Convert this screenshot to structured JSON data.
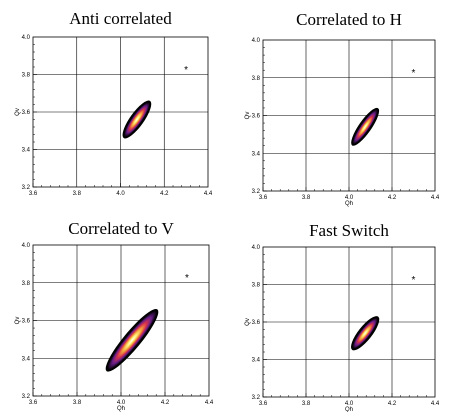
{
  "chart_data": [
    {
      "type": "heatmap",
      "title": "Anti correlated",
      "xlabel": "",
      "ylabel": "Qv",
      "xlim": [
        3.6,
        4.4
      ],
      "ylim": [
        3.2,
        4.0
      ],
      "xticks": [
        "3.6",
        "3.8",
        "4.0",
        "4.2",
        "4.4"
      ],
      "yticks": [
        "3.2",
        "3.4",
        "3.6",
        "3.8",
        "4.0"
      ],
      "grid": true,
      "marker": {
        "symbol": "*",
        "x": 4.3,
        "y": 3.83
      },
      "blob": {
        "x0": 4.02,
        "y0": 3.47,
        "x1": 4.13,
        "y1": 3.65,
        "width": 0.045
      }
    },
    {
      "type": "heatmap",
      "title": "Correlated to H",
      "xlabel": "Qh",
      "ylabel": "Qv",
      "xlim": [
        3.6,
        4.4
      ],
      "ylim": [
        3.2,
        4.0
      ],
      "xticks": [
        "3.6",
        "3.8",
        "4.0",
        "4.2",
        "4.4"
      ],
      "yticks": [
        "3.2",
        "3.4",
        "3.6",
        "3.8",
        "4.0"
      ],
      "grid": true,
      "marker": {
        "symbol": "*",
        "x": 4.3,
        "y": 3.83
      },
      "blob": {
        "x0": 4.02,
        "y0": 3.45,
        "x1": 4.13,
        "y1": 3.63,
        "width": 0.04
      }
    },
    {
      "type": "heatmap",
      "title": "Correlated to V",
      "xlabel": "Qh",
      "ylabel": "Qv",
      "xlim": [
        3.6,
        4.4
      ],
      "ylim": [
        3.2,
        4.0
      ],
      "xticks": [
        "3.6",
        "3.8",
        "4.0",
        "4.2",
        "4.4"
      ],
      "yticks": [
        "3.2",
        "3.4",
        "3.6",
        "3.8",
        "4.0"
      ],
      "grid": true,
      "marker": {
        "symbol": "*",
        "x": 4.3,
        "y": 3.83
      },
      "blob": {
        "x0": 3.94,
        "y0": 3.34,
        "x1": 4.16,
        "y1": 3.65,
        "width": 0.06
      }
    },
    {
      "type": "heatmap",
      "title": "Fast Switch",
      "xlabel": "Qh",
      "ylabel": "Qv",
      "xlim": [
        3.6,
        4.4
      ],
      "ylim": [
        3.2,
        4.0
      ],
      "xticks": [
        "3.6",
        "3.8",
        "4.0",
        "4.2",
        "4.4"
      ],
      "yticks": [
        "3.2",
        "3.4",
        "3.6",
        "3.8",
        "4.0"
      ],
      "grid": true,
      "marker": {
        "symbol": "*",
        "x": 4.3,
        "y": 3.83
      },
      "blob": {
        "x0": 4.02,
        "y0": 3.46,
        "x1": 4.13,
        "y1": 3.62,
        "width": 0.045
      }
    }
  ]
}
